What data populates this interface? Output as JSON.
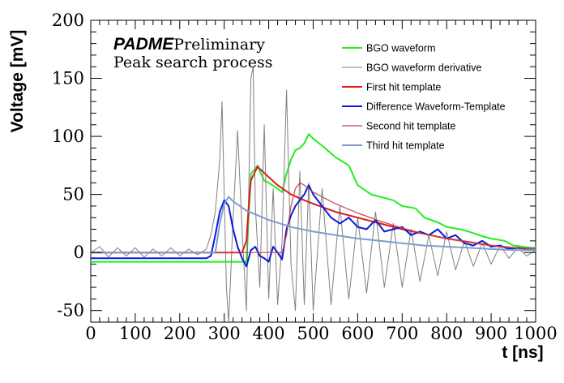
{
  "chart_data": {
    "type": "line",
    "title": "",
    "xlabel": "t [ns]",
    "ylabel": "Voltage [mV]",
    "xlim": [
      0,
      1000
    ],
    "ylim": [
      -60,
      200
    ],
    "x_ticks": [
      0,
      100,
      200,
      300,
      400,
      500,
      600,
      700,
      800,
      900,
      1000
    ],
    "y_ticks": [
      -50,
      0,
      50,
      100,
      150,
      200
    ],
    "grid": false,
    "legend_position": "top-right",
    "annotations": {
      "brand": "PADME",
      "status": "Preliminary",
      "subtitle": "Peak search process"
    },
    "series": [
      {
        "name": "BGO waveform",
        "color": "#22ee22",
        "x": [
          0,
          280,
          300,
          340,
          350,
          360,
          370,
          375,
          380,
          390,
          400,
          420,
          430,
          440,
          450,
          460,
          470,
          480,
          490,
          500,
          520,
          550,
          580,
          600,
          630,
          650,
          680,
          700,
          730,
          750,
          780,
          800,
          830,
          850,
          880,
          900,
          930,
          950,
          970,
          990,
          1000
        ],
        "y": [
          -8,
          -8,
          -8,
          -8,
          -8,
          68,
          72,
          75,
          70,
          62,
          60,
          55,
          52,
          68,
          80,
          88,
          90,
          94,
          102,
          98,
          92,
          82,
          75,
          58,
          50,
          48,
          45,
          40,
          38,
          30,
          26,
          22,
          20,
          18,
          14,
          12,
          10,
          6,
          5,
          4,
          4
        ]
      },
      {
        "name": "BGO waveform derivative",
        "color": "#808080",
        "x": [
          0,
          20,
          40,
          60,
          80,
          100,
          120,
          140,
          160,
          180,
          200,
          220,
          240,
          260,
          270,
          280,
          290,
          295,
          300,
          305,
          310,
          320,
          330,
          340,
          350,
          360,
          365,
          370,
          380,
          390,
          400,
          410,
          420,
          430,
          440,
          450,
          460,
          470,
          480,
          490,
          500,
          520,
          540,
          560,
          580,
          600,
          620,
          640,
          660,
          680,
          700,
          720,
          740,
          760,
          780,
          800,
          820,
          840,
          860,
          880,
          900,
          920,
          940,
          960,
          980,
          1000
        ],
        "y": [
          0,
          5,
          -4,
          4,
          -3,
          4,
          -4,
          3,
          -3,
          4,
          -3,
          3,
          -2,
          3,
          15,
          35,
          80,
          130,
          50,
          -30,
          -60,
          30,
          105,
          20,
          -50,
          150,
          160,
          40,
          -30,
          110,
          -40,
          55,
          -45,
          10,
          140,
          -10,
          -50,
          70,
          -45,
          60,
          -50,
          55,
          -45,
          40,
          -40,
          30,
          -35,
          35,
          -30,
          25,
          -30,
          20,
          -25,
          15,
          -20,
          18,
          -15,
          10,
          -12,
          8,
          -10,
          6,
          -5,
          4,
          -3,
          2
        ]
      },
      {
        "name": "First hit template",
        "color": "#dd1a1a",
        "x": [
          0,
          340,
          350,
          355,
          360,
          370,
          375,
          380,
          400,
          420,
          450,
          480,
          500,
          550,
          600,
          650,
          700,
          750,
          800,
          850,
          900,
          950,
          1000
        ],
        "y": [
          0,
          0,
          10,
          40,
          62,
          70,
          74,
          72,
          65,
          58,
          50,
          45,
          42,
          35,
          30,
          25,
          20,
          16,
          12,
          9,
          6,
          4,
          3
        ]
      },
      {
        "name": "Difference Waveform-Template",
        "color": "#0a1ad8",
        "x": [
          0,
          260,
          270,
          280,
          290,
          300,
          310,
          320,
          330,
          340,
          350,
          360,
          370,
          380,
          390,
          400,
          410,
          420,
          430,
          440,
          450,
          460,
          470,
          480,
          490,
          500,
          520,
          540,
          560,
          580,
          600,
          620,
          640,
          660,
          680,
          700,
          720,
          740,
          760,
          780,
          800,
          820,
          840,
          860,
          880,
          900,
          920,
          940,
          960,
          980,
          1000
        ],
        "y": [
          -5,
          -5,
          -3,
          15,
          35,
          45,
          40,
          20,
          5,
          -5,
          -12,
          2,
          5,
          -3,
          -5,
          -8,
          5,
          0,
          -6,
          20,
          32,
          40,
          45,
          50,
          58,
          50,
          40,
          30,
          25,
          30,
          22,
          20,
          28,
          18,
          20,
          22,
          15,
          18,
          15,
          20,
          12,
          15,
          8,
          6,
          10,
          5,
          6,
          3,
          4,
          3,
          3
        ]
      },
      {
        "name": "Second hit template",
        "color": "#cc4444",
        "x": [
          0,
          430,
          440,
          450,
          460,
          470,
          480,
          500,
          550,
          600,
          650,
          700,
          750,
          800,
          850,
          900,
          950,
          1000
        ],
        "y": [
          0,
          0,
          15,
          40,
          55,
          60,
          58,
          52,
          42,
          34,
          27,
          21,
          16,
          12,
          9,
          6,
          4,
          3
        ]
      },
      {
        "name": "Third hit template",
        "color": "#7f9ccc",
        "x": [
          0,
          280,
          290,
          300,
          310,
          320,
          350,
          400,
          450,
          500,
          550,
          600,
          650,
          700,
          750,
          800,
          850,
          900,
          950,
          1000
        ],
        "y": [
          0,
          0,
          25,
          42,
          48,
          44,
          36,
          28,
          22,
          18,
          15,
          12,
          10,
          8,
          6,
          5,
          4,
          3,
          2,
          2
        ]
      }
    ]
  }
}
